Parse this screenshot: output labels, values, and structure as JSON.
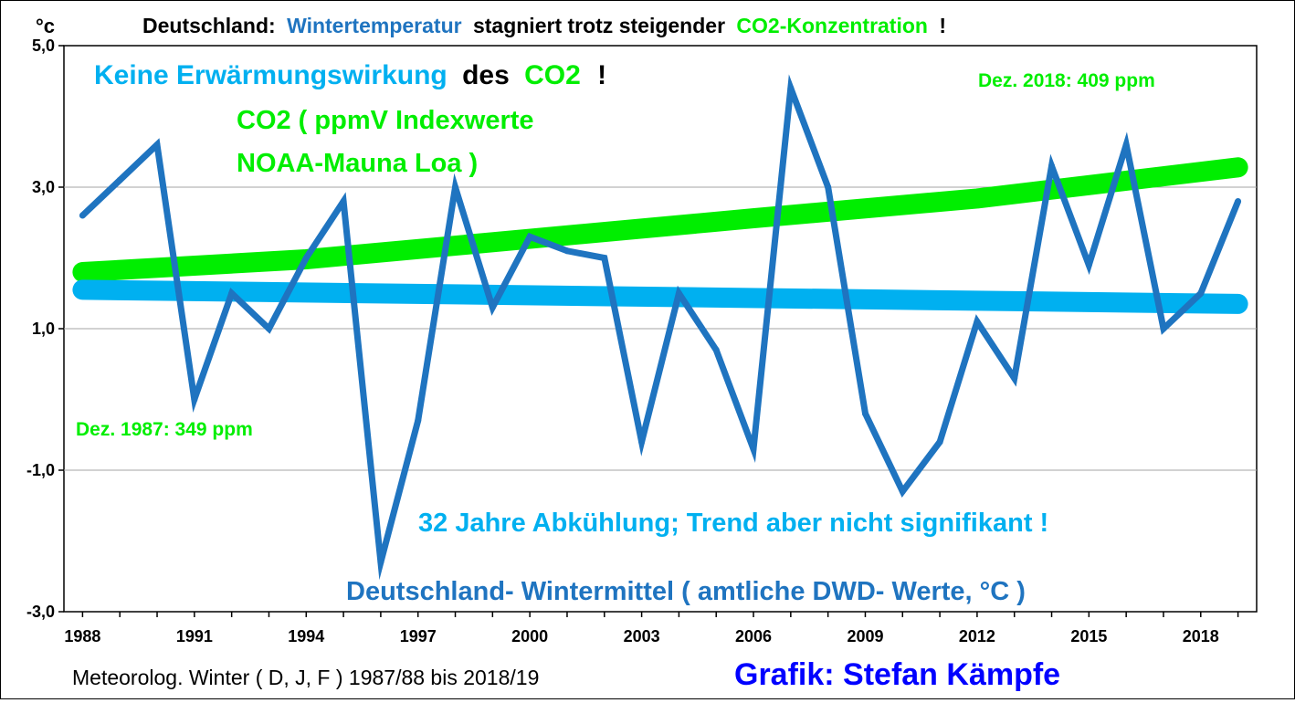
{
  "title": {
    "part1": "Deutschland:",
    "part2": "Wintertemperatur",
    "part3": "stagniert trotz steigender",
    "part4": "CO2-Konzentration",
    "part5": "!"
  },
  "unit_label": "°c",
  "annotations": {
    "headline_a": "Keine Erwärmungswirkung",
    "headline_b": "des",
    "headline_c": "CO2",
    "headline_d": "!",
    "co2_label_1": "CO2 ( ppmV Indexwerte",
    "co2_label_2": "NOAA-Mauna Loa )",
    "co2_end": "Dez. 2018: 409 ppm",
    "co2_start": "Dez. 1987: 349 ppm",
    "trend_note": "32 Jahre Abkühlung; Trend aber nicht signifikant !",
    "series_note": "Deutschland- Wintermittel ( amtliche DWD- Werte, °C )"
  },
  "footer": {
    "period": "Meteorolog. Winter ( D, J, F ) 1987/88 bis 2018/19",
    "credit": "Grafik: Stefan Kämpfe"
  },
  "colors": {
    "temperature": "#1f74c0",
    "trend": "#00b0f0",
    "co2": "#00ee00",
    "credit": "#0000ff",
    "grid": "#a6a6a6"
  },
  "chart_data": {
    "type": "line",
    "x_tick_labels": [
      "1988",
      "1991",
      "1994",
      "1997",
      "2000",
      "2003",
      "2006",
      "2009",
      "2012",
      "2015",
      "2018"
    ],
    "y_tick_labels": [
      "5,0",
      "3,0",
      "1,0",
      "-1,0",
      "-3,0"
    ],
    "ylim": [
      -3,
      5
    ],
    "xlim": [
      1987.5,
      2019.5
    ],
    "grid": true,
    "series": [
      {
        "name": "Deutschland- Wintermittel ( amtliche DWD- Werte, °C )",
        "x": [
          1988,
          1989,
          1990,
          1991,
          1992,
          1993,
          1994,
          1995,
          1996,
          1997,
          1998,
          1999,
          2000,
          2001,
          2002,
          2003,
          2004,
          2005,
          2006,
          2007,
          2008,
          2009,
          2010,
          2011,
          2012,
          2013,
          2014,
          2015,
          2016,
          2017,
          2018,
          2019
        ],
        "values": [
          2.6,
          3.1,
          3.6,
          0.0,
          1.5,
          1.0,
          2.0,
          2.8,
          -2.3,
          -0.3,
          3.0,
          1.3,
          2.3,
          2.1,
          2.0,
          -0.6,
          1.5,
          0.7,
          -0.7,
          4.4,
          3.0,
          -0.2,
          -1.3,
          -0.6,
          1.1,
          0.3,
          3.3,
          1.9,
          3.6,
          1.0,
          1.5,
          2.8
        ]
      },
      {
        "name": "trend",
        "x": [
          1988,
          2019
        ],
        "values": [
          1.55,
          1.35
        ]
      },
      {
        "name": "CO2 ( ppmV Indexwerte NOAA-Mauna Loa )",
        "x": [
          1988,
          1994,
          2000,
          2006,
          2012,
          2019
        ],
        "values": [
          1.8,
          1.98,
          2.27,
          2.56,
          2.84,
          3.28
        ]
      }
    ]
  }
}
